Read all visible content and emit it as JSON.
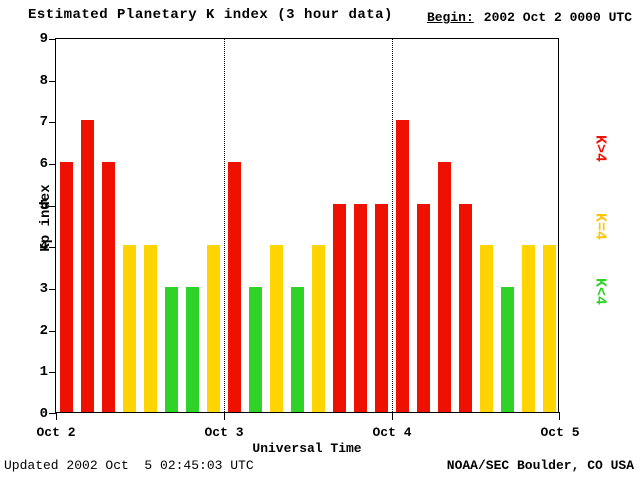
{
  "header": {
    "title": "Estimated Planetary K index (3 hour data)",
    "begin_label": "Begin:",
    "begin_value": "2002 Oct 2 0000 UTC"
  },
  "footer": {
    "updated": "Updated 2002 Oct  5 02:45:03 UTC",
    "credit": "NOAA/SEC Boulder, CO USA"
  },
  "chart_data": {
    "type": "bar",
    "title": "Estimated Planetary K index (3 hour data)",
    "xlabel": "Universal Time",
    "ylabel": "Kp index",
    "ylim": [
      0,
      9
    ],
    "yticks": [
      0,
      1,
      2,
      3,
      4,
      5,
      6,
      7,
      8,
      9
    ],
    "xtick_labels": [
      "Oct 2",
      "Oct 3",
      "Oct 4",
      "Oct 5"
    ],
    "bars_per_day": 8,
    "interval_hours": 3,
    "values": [
      6,
      7,
      6,
      4,
      4,
      3,
      3,
      4,
      6,
      3,
      4,
      3,
      4,
      5,
      5,
      5,
      7,
      5,
      6,
      5,
      4,
      3,
      4,
      4
    ],
    "colors": {
      "high": "#ee1100",
      "mid": "#ffd400",
      "low": "#2fd327"
    },
    "legend": [
      {
        "label": "K>4",
        "color": "#ee1100"
      },
      {
        "label": "K=4",
        "color": "#ffc400"
      },
      {
        "label": "K<4",
        "color": "#2fd327"
      }
    ],
    "grid": "dotted vertical lines at day boundaries",
    "legend_position": "right, rotated"
  }
}
